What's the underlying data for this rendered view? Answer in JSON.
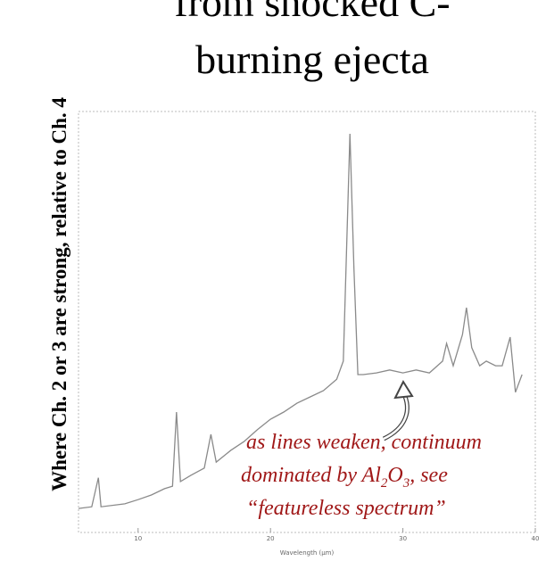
{
  "chart_data": {
    "type": "line",
    "title": [
      "from  shocked C-",
      "burning ejecta"
    ],
    "y_label": "Where Ch.  2 or 3 are strong, relative to Ch. 4",
    "x_label": "Wavelength (µm)",
    "annotation": [
      "as lines weaken, continuum",
      [
        "dominated by  Al",
        "2",
        "O",
        "3",
        ", see"
      ],
      "“featureless spectrum”"
    ],
    "xlim": [
      5.5,
      40
    ],
    "xticks": [
      10,
      20,
      30,
      40
    ],
    "ylim": [
      0,
      1
    ],
    "series": [
      {
        "color": "#8a8a8a",
        "x": [
          5.5,
          6.5,
          7.0,
          7.2,
          9,
          10,
          11,
          12,
          12.6,
          12.9,
          13.2,
          14,
          15.0,
          15.5,
          15.9,
          17,
          18,
          19,
          20,
          21,
          22,
          23,
          24,
          25,
          25.5,
          26,
          26.3,
          26.6,
          27,
          28,
          29,
          30,
          31,
          32,
          33,
          33.3,
          33.8,
          34.5,
          34.8,
          35.2,
          35.8,
          36.3,
          37,
          37.5,
          38.1,
          38.5,
          39
        ],
        "values": [
          0.057,
          0.061,
          0.13,
          0.061,
          0.068,
          0.078,
          0.089,
          0.104,
          0.11,
          0.286,
          0.121,
          0.136,
          0.153,
          0.233,
          0.167,
          0.195,
          0.216,
          0.244,
          0.269,
          0.286,
          0.307,
          0.322,
          0.337,
          0.364,
          0.407,
          0.947,
          0.629,
          0.375,
          0.375,
          0.379,
          0.386,
          0.379,
          0.386,
          0.379,
          0.407,
          0.449,
          0.396,
          0.47,
          0.534,
          0.439,
          0.396,
          0.407,
          0.396,
          0.396,
          0.464,
          0.333,
          0.375
        ]
      }
    ]
  }
}
